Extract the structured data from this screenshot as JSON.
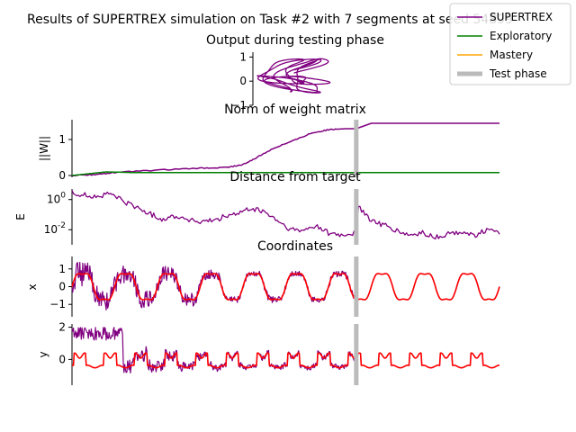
{
  "figure": {
    "suptitle": "Results of SUPERTREX simulation on Task #2 with 7 segments at seed 54899"
  },
  "legend": {
    "placement": "top-right",
    "entries": [
      {
        "label": "SUPERTREX",
        "color": "#800080",
        "style": "line"
      },
      {
        "label": "Exploratory",
        "color": "#008000",
        "style": "line"
      },
      {
        "label": "Mastery",
        "color": "#ffa500",
        "style": "line"
      },
      {
        "label": "Test phase",
        "color": "#bbbbbb",
        "style": "thick"
      }
    ]
  },
  "colors": {
    "supertrex": "#800080",
    "exploratory": "#008000",
    "mastery": "#ffa500",
    "target": "#ff0000",
    "test_phase": "#bbbbbb"
  },
  "chart_data": [
    {
      "id": "output",
      "type": "line",
      "title": "Output during testing phase",
      "xlabel": "",
      "ylabel": "",
      "ylim": [
        -1,
        1.2
      ],
      "yticks": [
        {
          "v": 1,
          "t": "1"
        },
        {
          "v": 0,
          "t": "0"
        },
        {
          "v": -1,
          "t": "−1"
        }
      ],
      "series": [
        {
          "name": "SUPERTREX",
          "kind": "trajectory"
        }
      ]
    },
    {
      "id": "weights",
      "type": "line",
      "title": "Norm of weight matrix",
      "xlabel": "",
      "ylabel": "||W||",
      "ylim": [
        -0.05,
        1.55
      ],
      "yticks": [
        {
          "v": 1,
          "t": "1"
        },
        {
          "v": 0,
          "t": "0"
        }
      ],
      "test_phase_x": 0.665,
      "series": [
        {
          "name": "SUPERTREX",
          "x": [
            0,
            0.05,
            0.1,
            0.2,
            0.3,
            0.36,
            0.4,
            0.44,
            0.47,
            0.52,
            0.56,
            0.6,
            0.64,
            0.665,
            0.7,
            1.0
          ],
          "values": [
            0,
            0.02,
            0.08,
            0.15,
            0.2,
            0.22,
            0.3,
            0.55,
            0.75,
            0.98,
            1.18,
            1.27,
            1.3,
            1.3,
            1.45,
            1.45
          ]
        },
        {
          "name": "Exploratory",
          "x": [
            0,
            0.04,
            0.08,
            0.15,
            1.0
          ],
          "values": [
            0,
            0.05,
            0.1,
            0.08,
            0.08
          ]
        }
      ]
    },
    {
      "id": "distance",
      "type": "line",
      "title": "Distance from target",
      "xlabel": "",
      "ylabel": "E",
      "yscale": "log",
      "ylim": [
        0.001,
        5
      ],
      "yticks": [
        {
          "v": 1,
          "t": "10^0"
        },
        {
          "v": 0.01,
          "t": "10^-2"
        }
      ],
      "test_phase_x": 0.665,
      "series": [
        {
          "name": "SUPERTREX",
          "x": [
            0,
            0.03,
            0.06,
            0.09,
            0.12,
            0.15,
            0.18,
            0.21,
            0.24,
            0.27,
            0.3,
            0.33,
            0.36,
            0.39,
            0.42,
            0.45,
            0.48,
            0.51,
            0.54,
            0.57,
            0.6,
            0.63,
            0.66,
            0.67,
            0.7,
            0.73,
            0.76,
            0.79,
            0.82,
            0.85,
            0.88,
            0.91,
            0.94,
            0.97,
            1.0
          ],
          "values": [
            3,
            2,
            1.5,
            2.5,
            0.8,
            0.3,
            0.12,
            0.05,
            0.08,
            0.05,
            0.03,
            0.04,
            0.08,
            0.12,
            0.25,
            0.15,
            0.04,
            0.01,
            0.008,
            0.02,
            0.006,
            0.004,
            0.006,
            0.3,
            0.04,
            0.02,
            0.008,
            0.004,
            0.006,
            0.003,
            0.005,
            0.008,
            0.004,
            0.01,
            0.005
          ]
        }
      ]
    },
    {
      "id": "xcoord",
      "type": "line",
      "title": "Coordinates",
      "xlabel": "",
      "ylabel": "x",
      "ylim": [
        -1.7,
        1.7
      ],
      "yticks": [
        {
          "v": 1,
          "t": "1"
        },
        {
          "v": 0,
          "t": "0"
        },
        {
          "v": -1,
          "t": "−1"
        }
      ],
      "test_phase_x": 0.665,
      "periods": 10,
      "series": [
        {
          "name": "SUPERTREX",
          "kind": "oscillation",
          "amplitude": 1.0
        },
        {
          "name": "Target",
          "kind": "oscillation",
          "amplitude": 1.0
        }
      ]
    },
    {
      "id": "ycoord",
      "type": "line",
      "title": "",
      "xlabel": "",
      "ylabel": "y",
      "ylim": [
        -1.6,
        2.2
      ],
      "yticks": [
        {
          "v": 2,
          "t": "2"
        },
        {
          "v": 0,
          "t": "0"
        }
      ],
      "test_phase_x": 0.665,
      "periods": 14,
      "series": [
        {
          "name": "SUPERTREX",
          "kind": "oscillation",
          "amplitude": 0.8
        },
        {
          "name": "Target",
          "kind": "oscillation",
          "amplitude": 0.8
        }
      ]
    }
  ]
}
